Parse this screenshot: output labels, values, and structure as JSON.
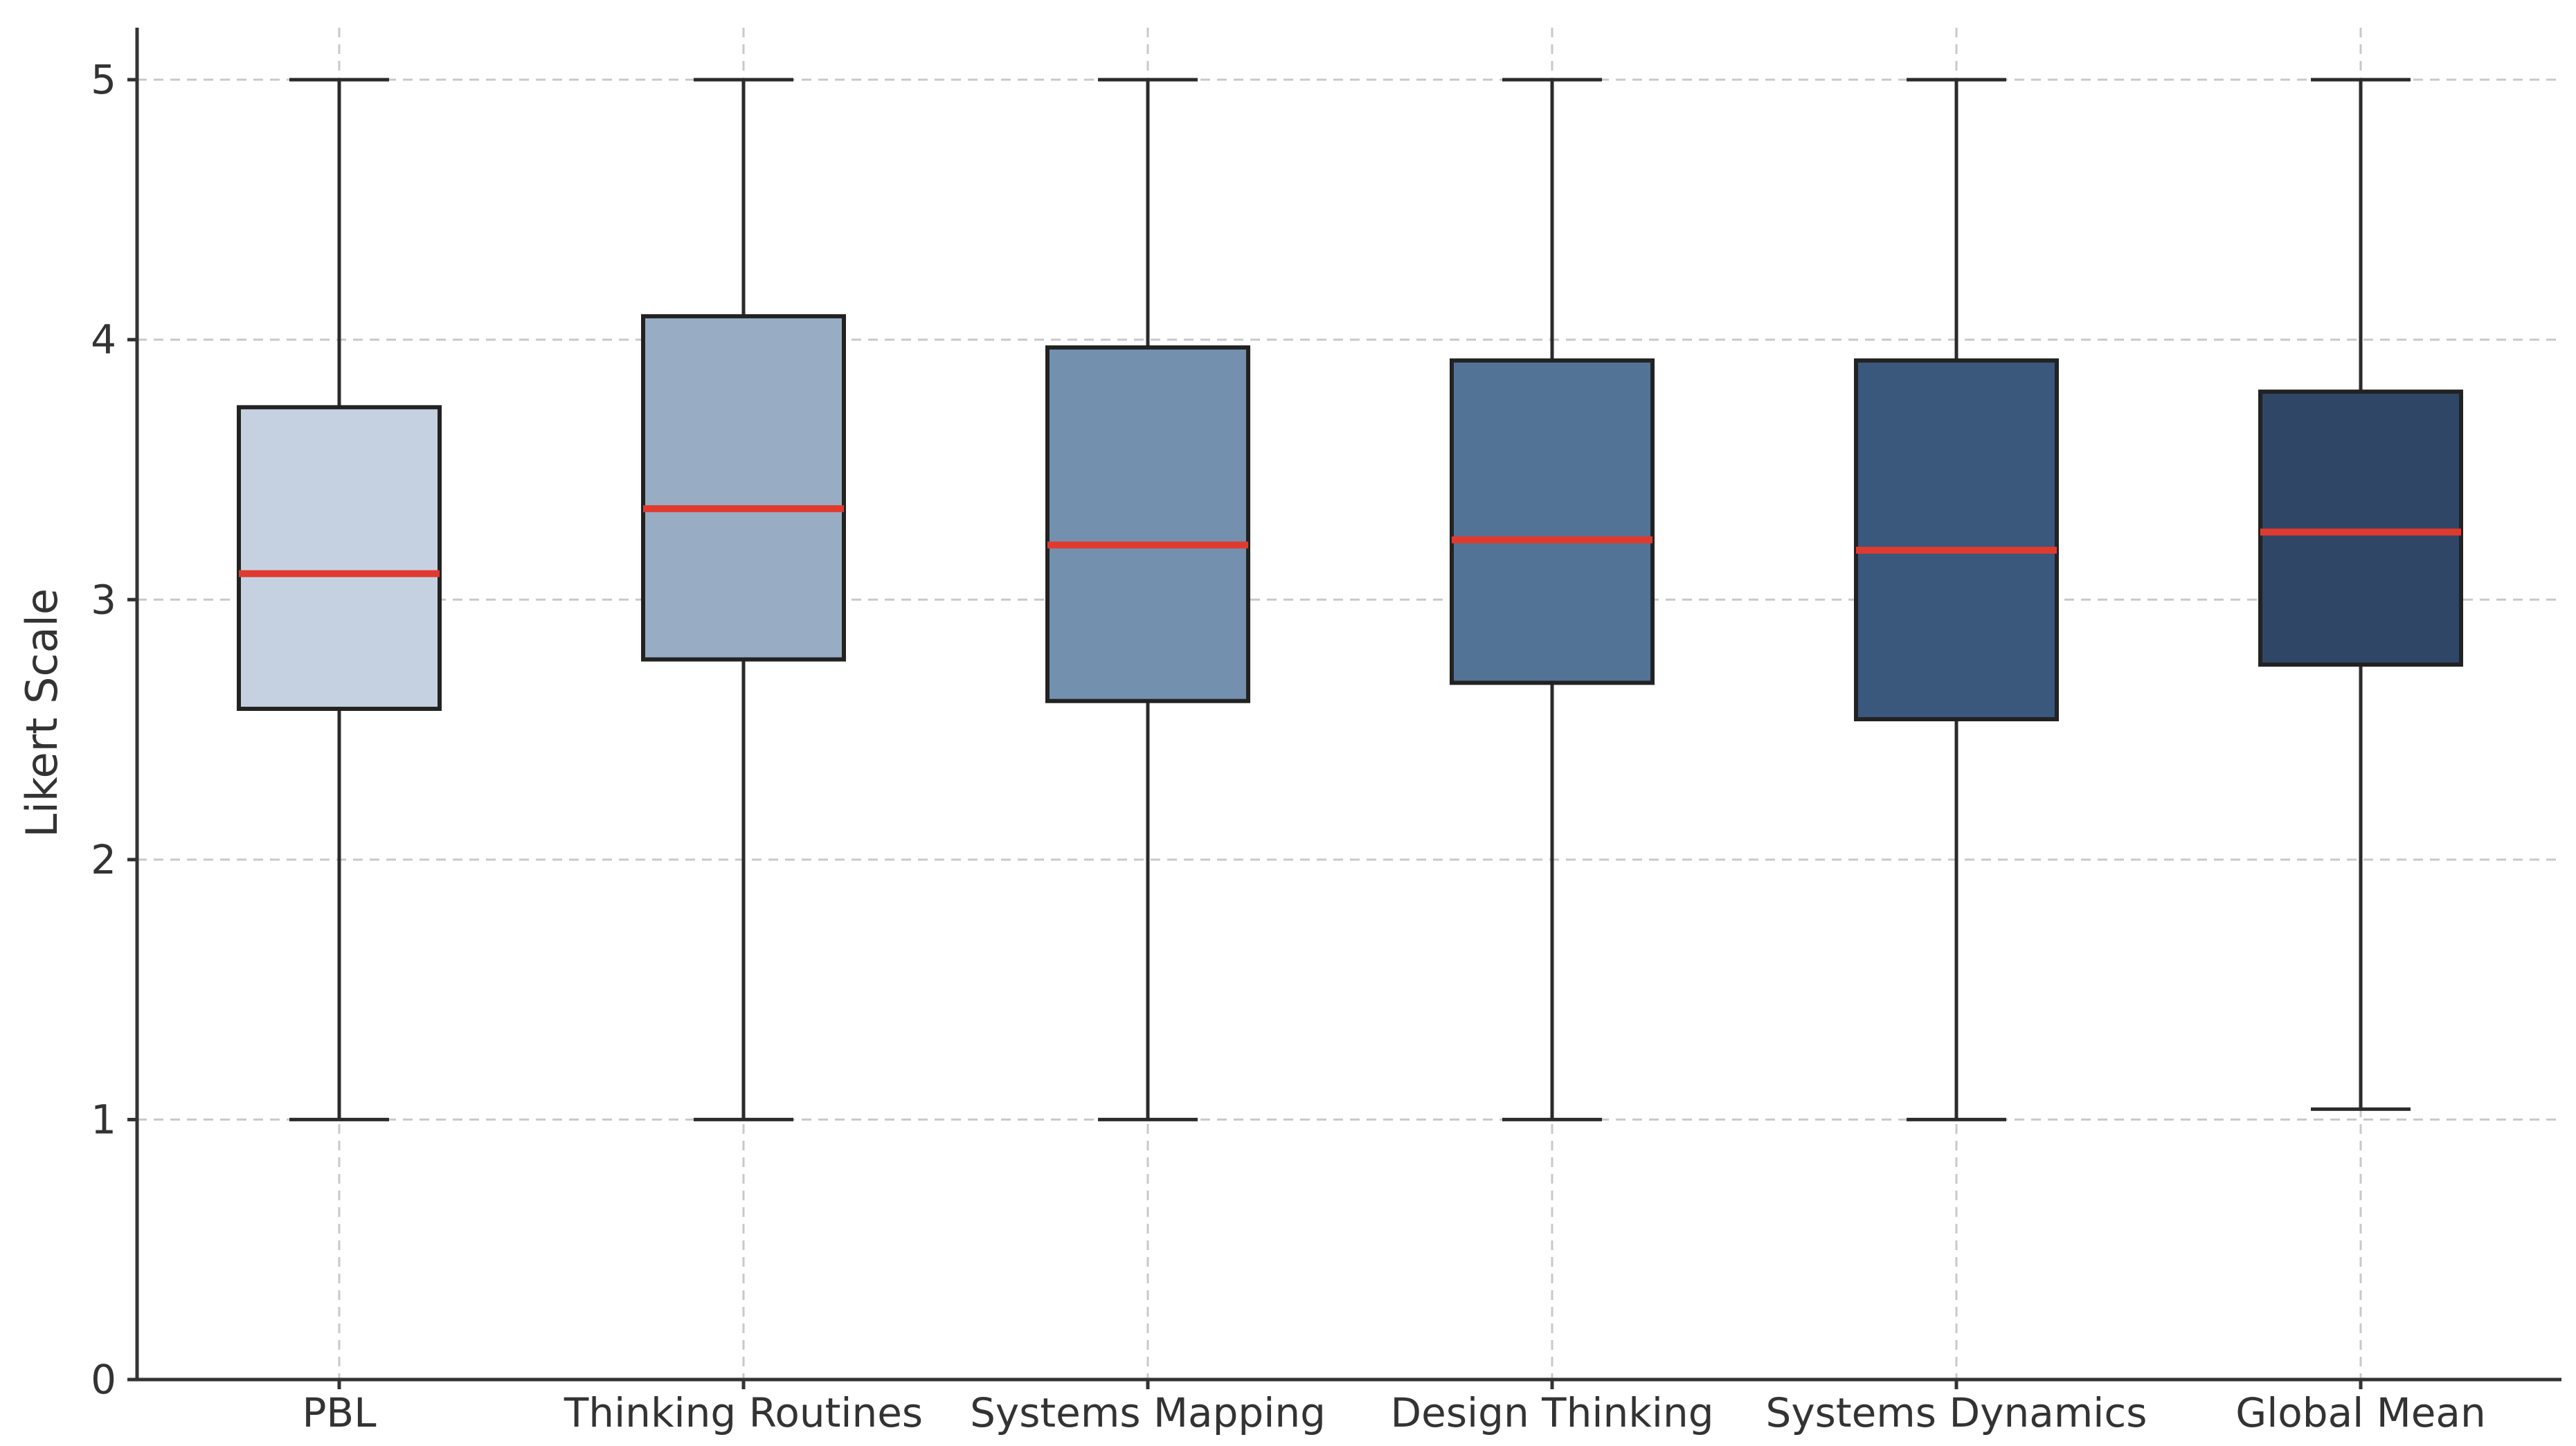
{
  "chart_data": {
    "type": "box",
    "title": "",
    "xlabel": "",
    "ylabel": "Likert Scale",
    "ylim": [
      0,
      5.2
    ],
    "yticks": [
      "0",
      "1",
      "2",
      "3",
      "4",
      "5"
    ],
    "grid": true,
    "categories": [
      "PBL",
      "Thinking Routines",
      "Systems Mapping",
      "Design Thinking",
      "Systems Dynamics",
      "Global Mean"
    ],
    "boxes": [
      {
        "name": "PBL",
        "min": 1.0,
        "q1": 2.58,
        "median": 3.1,
        "q3": 3.74,
        "max": 5.0,
        "color": "#c5d1e0"
      },
      {
        "name": "Thinking Routines",
        "min": 1.0,
        "q1": 2.77,
        "median": 3.35,
        "q3": 4.09,
        "max": 5.0,
        "color": "#98adc4"
      },
      {
        "name": "Systems Mapping",
        "min": 1.0,
        "q1": 2.61,
        "median": 3.21,
        "q3": 3.97,
        "max": 5.0,
        "color": "#7390ae"
      },
      {
        "name": "Design Thinking",
        "min": 1.0,
        "q1": 2.68,
        "median": 3.23,
        "q3": 3.92,
        "max": 5.0,
        "color": "#527396"
      },
      {
        "name": "Systems Dynamics",
        "min": 1.0,
        "q1": 2.54,
        "median": 3.19,
        "q3": 3.92,
        "max": 5.0,
        "color": "#3a577c"
      },
      {
        "name": "Global Mean",
        "min": 1.04,
        "q1": 2.75,
        "median": 3.26,
        "q3": 3.8,
        "max": 5.0,
        "color": "#2f4666"
      }
    ],
    "median_color": "#e03a2f"
  }
}
